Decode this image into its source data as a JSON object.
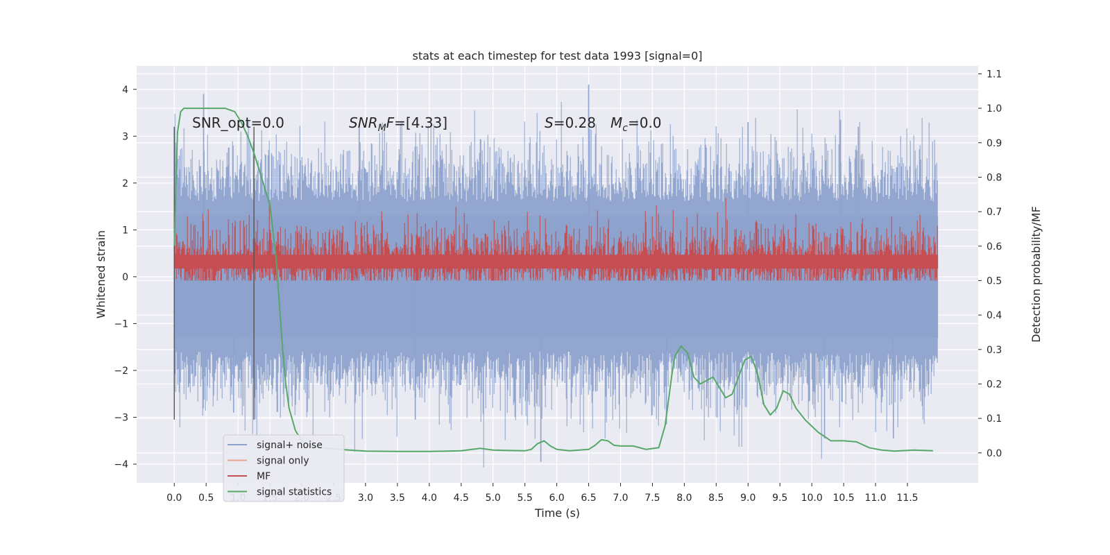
{
  "chart_data": {
    "type": "line",
    "title": "stats at each timestep for test data 1993 [signal=0]",
    "xlabel": "Time (s)",
    "ylabel": "Whitened strain",
    "y2label": "Detection probability/MF",
    "xlim": [
      -0.59,
      12.61
    ],
    "ylim": [
      -4.4,
      4.5
    ],
    "y2lim": [
      -0.087,
      1.123
    ],
    "xticks": [
      0.0,
      0.5,
      1.0,
      1.5,
      2.0,
      2.5,
      3.0,
      3.5,
      4.0,
      4.5,
      5.0,
      5.5,
      6.0,
      6.5,
      7.0,
      7.5,
      8.0,
      8.5,
      9.0,
      9.5,
      10.0,
      10.5,
      11.0,
      11.5
    ],
    "xtick_labels": [
      "0.0",
      "0.5",
      "1.0",
      "1.5",
      "2.0",
      "2.5",
      "3.0",
      "3.5",
      "4.0",
      "4.5",
      "5.0",
      "5.5",
      "6.0",
      "6.5",
      "7.0",
      "7.5",
      "8.0",
      "8.5",
      "9.0",
      "9.5",
      "10.0",
      "10.5",
      "11.0",
      "11.5"
    ],
    "yticks": [
      -4,
      -3,
      -2,
      -1,
      0,
      1,
      2,
      3,
      4
    ],
    "ytick_labels": [
      "−4",
      "−3",
      "−2",
      "−1",
      "0",
      "1",
      "2",
      "3",
      "4"
    ],
    "y2ticks": [
      0.0,
      0.1,
      0.2,
      0.3,
      0.4,
      0.5,
      0.6,
      0.7,
      0.8,
      0.9,
      1.0,
      1.1
    ],
    "y2tick_labels": [
      "0.0",
      "0.1",
      "0.2",
      "0.3",
      "0.4",
      "0.5",
      "0.6",
      "0.7",
      "0.8",
      "0.9",
      "1.0",
      "1.1"
    ],
    "grid": true,
    "legend_position": "bottom-left",
    "vertical_lines": [
      0.0,
      1.25
    ],
    "annotations": {
      "snr_opt": "SNR_opt=0.0",
      "snr_mf_prefix": "SNR",
      "snr_mf_sub": "M",
      "snr_mf_suffix": "F=[4.33]",
      "s_sym": "S",
      "s_val": "=0.28",
      "mc_sym": "M",
      "mc_sub": "c",
      "mc_val": "=0.0"
    },
    "series": [
      {
        "name": "signal+ noise",
        "color": "#8da2cc",
        "axis": "left",
        "x_start": 0.0,
        "x_end": 11.98,
        "description": "noise band",
        "spikes": [
          {
            "x": 0.46,
            "y": 3.9
          },
          {
            "x": 6.5,
            "y": 4.1
          },
          {
            "x": 10.45,
            "y": 3.35
          },
          {
            "x": 10.73,
            "y": 3.2
          },
          {
            "x": 5.75,
            "y": -3.95
          },
          {
            "x": 10.2,
            "y": -3.45
          },
          {
            "x": 11.28,
            "y": -3.45
          },
          {
            "x": 0.93,
            "y": -2.9
          },
          {
            "x": 9.0,
            "y": 3.3
          },
          {
            "x": 2.9,
            "y": 3.2
          },
          {
            "x": 3.78,
            "y": -3.05
          },
          {
            "x": 7.72,
            "y": -3.15
          }
        ]
      },
      {
        "name": "signal only",
        "color": "#e9a48f",
        "axis": "left",
        "values_flat": 0.0
      },
      {
        "name": "MF",
        "color": "#c44e52",
        "axis": "right",
        "center": 0.555,
        "spread": 0.04
      },
      {
        "name": "signal statistics",
        "color": "#55a868",
        "axis": "right",
        "x": [
          0.0,
          0.05,
          0.1,
          0.15,
          0.25,
          0.5,
          0.8,
          0.95,
          1.05,
          1.15,
          1.25,
          1.35,
          1.5,
          1.6,
          1.7,
          1.75,
          1.8,
          1.9,
          2.0,
          2.1,
          2.3,
          2.6,
          3.0,
          3.5,
          4.0,
          4.5,
          4.8,
          5.0,
          5.2,
          5.5,
          5.6,
          5.7,
          5.8,
          5.9,
          6.0,
          6.2,
          6.5,
          6.6,
          6.7,
          6.8,
          6.9,
          7.0,
          7.2,
          7.4,
          7.6,
          7.7,
          7.8,
          7.85,
          7.95,
          8.05,
          8.15,
          8.25,
          8.35,
          8.45,
          8.55,
          8.65,
          8.75,
          8.85,
          8.95,
          9.05,
          9.15,
          9.25,
          9.35,
          9.45,
          9.55,
          9.65,
          9.75,
          9.9,
          10.1,
          10.3,
          10.5,
          10.7,
          10.9,
          11.1,
          11.3,
          11.6,
          11.9
        ],
        "values": [
          0.6,
          0.93,
          0.99,
          1.0,
          1.0,
          1.0,
          1.0,
          0.99,
          0.96,
          0.92,
          0.87,
          0.81,
          0.72,
          0.56,
          0.3,
          0.2,
          0.13,
          0.065,
          0.035,
          0.022,
          0.015,
          0.01,
          0.005,
          0.004,
          0.004,
          0.006,
          0.013,
          0.008,
          0.007,
          0.006,
          0.01,
          0.027,
          0.035,
          0.02,
          0.01,
          0.006,
          0.01,
          0.022,
          0.038,
          0.035,
          0.022,
          0.02,
          0.02,
          0.01,
          0.015,
          0.08,
          0.22,
          0.28,
          0.31,
          0.29,
          0.22,
          0.2,
          0.21,
          0.22,
          0.19,
          0.16,
          0.17,
          0.22,
          0.27,
          0.28,
          0.23,
          0.14,
          0.11,
          0.13,
          0.18,
          0.17,
          0.13,
          0.095,
          0.06,
          0.035,
          0.035,
          0.032,
          0.015,
          0.008,
          0.005,
          0.008,
          0.006
        ]
      }
    ]
  }
}
